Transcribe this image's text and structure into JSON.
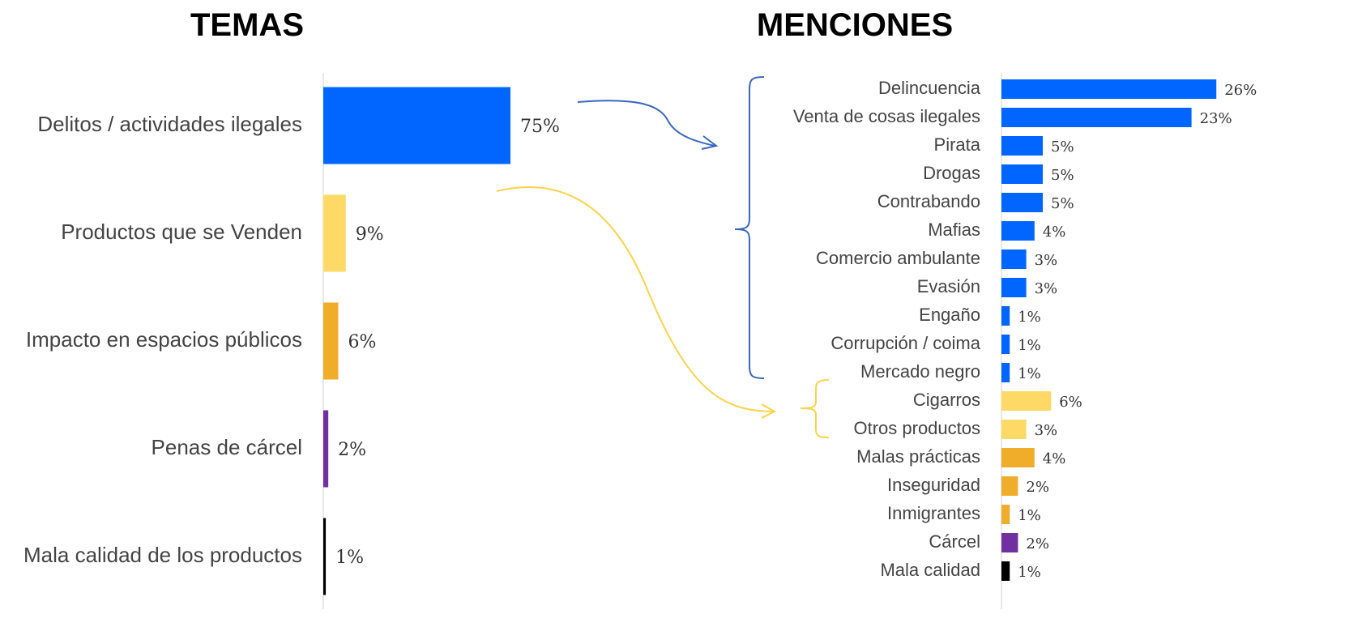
{
  "chart_data": [
    {
      "type": "bar",
      "orientation": "horizontal",
      "title": "TEMAS",
      "categories": [
        "Delitos / actividades ilegales",
        "Productos que se Venden",
        "Impacto en espacios públicos",
        "Penas de cárcel",
        "Mala calidad de los productos"
      ],
      "values": [
        75,
        9,
        6,
        2,
        1
      ],
      "value_labels": [
        "75%",
        "9%",
        "6%",
        "2%",
        "1%"
      ],
      "colors": [
        "#0066ff",
        "#ffd966",
        "#f0ad2a",
        "#7030a0",
        "#000000"
      ]
    },
    {
      "type": "bar",
      "orientation": "horizontal",
      "title": "MENCIONES",
      "categories": [
        "Delincuencia",
        "Venta de cosas ilegales",
        "Pirata",
        "Drogas",
        "Contrabando",
        "Mafias",
        "Comercio ambulante",
        "Evasión",
        "Engaño",
        "Corrupción / coima",
        "Mercado negro",
        "Cigarros",
        "Otros productos",
        "Malas prácticas",
        "Inseguridad",
        "Inmigrantes",
        "Cárcel",
        "Mala calidad"
      ],
      "values": [
        26,
        23,
        5,
        5,
        5,
        4,
        3,
        3,
        1,
        1,
        1,
        6,
        3,
        4,
        2,
        1,
        2,
        1
      ],
      "value_labels": [
        "26%",
        "23%",
        "5%",
        "5%",
        "5%",
        "4%",
        "3%",
        "3%",
        "1%",
        "1%",
        "1%",
        "6%",
        "3%",
        "4%",
        "2%",
        "1%",
        "2%",
        "1%"
      ],
      "colors": [
        "#0066ff",
        "#0066ff",
        "#0066ff",
        "#0066ff",
        "#0066ff",
        "#0066ff",
        "#0066ff",
        "#0066ff",
        "#0066ff",
        "#0066ff",
        "#0066ff",
        "#ffd966",
        "#ffd966",
        "#f0ad2a",
        "#f0ad2a",
        "#f0ad2a",
        "#7030a0",
        "#000000"
      ]
    }
  ]
}
